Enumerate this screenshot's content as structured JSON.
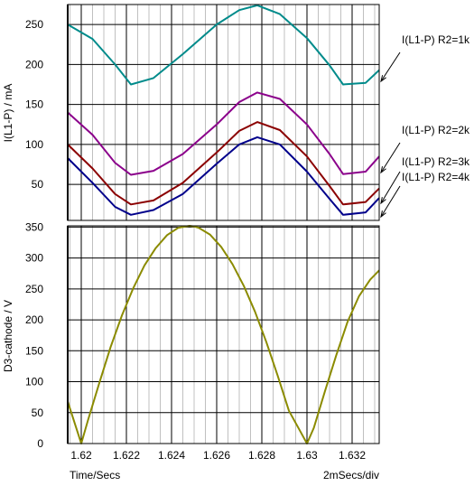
{
  "chart_data": [
    {
      "type": "line",
      "ylabel": "I(L1-P) / mA",
      "ylim": [
        5,
        275
      ],
      "yticks": [
        50,
        100,
        150,
        200,
        250
      ],
      "xlim": [
        1.6194,
        1.6332
      ],
      "grid": true,
      "series": [
        {
          "name": "I(L1-P) R2=1k",
          "color": "#008b8b",
          "x": [
            1.6194,
            1.6205,
            1.6215,
            1.6222,
            1.6232,
            1.6245,
            1.626,
            1.627,
            1.6278,
            1.6288,
            1.63,
            1.631,
            1.6316,
            1.6326,
            1.6332
          ],
          "y": [
            250,
            232,
            200,
            175,
            183,
            213,
            250,
            268,
            274,
            263,
            233,
            199,
            175,
            177,
            193
          ]
        },
        {
          "name": "I(L1-P) R2=2k",
          "color": "#8b008b",
          "x": [
            1.6194,
            1.6205,
            1.6215,
            1.6222,
            1.6232,
            1.6245,
            1.626,
            1.627,
            1.6278,
            1.6288,
            1.63,
            1.631,
            1.6316,
            1.6326,
            1.6332
          ],
          "y": [
            140,
            112,
            77,
            62,
            67,
            88,
            125,
            153,
            165,
            157,
            125,
            88,
            63,
            66,
            85
          ]
        },
        {
          "name": "I(L1-P) R2=3k",
          "color": "#8b0000",
          "x": [
            1.6194,
            1.6205,
            1.6215,
            1.6222,
            1.6232,
            1.6245,
            1.626,
            1.627,
            1.6278,
            1.6288,
            1.63,
            1.631,
            1.6316,
            1.6326,
            1.6332
          ],
          "y": [
            100,
            70,
            38,
            25,
            30,
            52,
            90,
            117,
            128,
            118,
            85,
            48,
            25,
            28,
            45
          ]
        },
        {
          "name": "I(L1-P) R2=4k",
          "color": "#00008b",
          "x": [
            1.6194,
            1.6205,
            1.6215,
            1.6222,
            1.6232,
            1.6245,
            1.626,
            1.627,
            1.6278,
            1.6288,
            1.63,
            1.631,
            1.6316,
            1.6326,
            1.6332
          ],
          "y": [
            83,
            52,
            22,
            12,
            18,
            38,
            76,
            100,
            109,
            100,
            66,
            32,
            12,
            15,
            33
          ]
        }
      ]
    },
    {
      "type": "line",
      "ylabel": "D3-cathode / V",
      "ylim": [
        0,
        352
      ],
      "yticks": [
        0,
        50,
        100,
        150,
        200,
        250,
        300,
        350
      ],
      "xlim": [
        1.6194,
        1.6332
      ],
      "xticks": [
        1.62,
        1.622,
        1.624,
        1.626,
        1.628,
        1.63,
        1.632
      ],
      "xtick_labels": [
        "1.62",
        "1.622",
        "1.624",
        "1.626",
        "1.628",
        "1.63",
        "1.632"
      ],
      "grid": true,
      "series": [
        {
          "name": "",
          "color": "#8b8b00",
          "x": [
            1.6194,
            1.6197,
            1.62,
            1.6203,
            1.6208,
            1.6213,
            1.6218,
            1.6223,
            1.6228,
            1.6233,
            1.6238,
            1.6243,
            1.6248,
            1.625,
            1.6252,
            1.6257,
            1.6262,
            1.6267,
            1.6272,
            1.6277,
            1.6282,
            1.6287,
            1.6292,
            1.6297,
            1.63,
            1.6303,
            1.6308,
            1.6313,
            1.6318,
            1.6323,
            1.6328,
            1.6332
          ],
          "y": [
            68,
            34,
            0,
            38,
            98,
            156,
            207,
            251,
            288,
            316,
            337,
            349,
            352,
            351,
            349,
            338,
            318,
            290,
            255,
            213,
            164,
            110,
            53,
            20,
            0,
            25,
            85,
            143,
            197,
            238,
            265,
            280
          ]
        }
      ]
    }
  ],
  "xlabel": "Time/Secs",
  "xdiv": "2mSecs/div"
}
